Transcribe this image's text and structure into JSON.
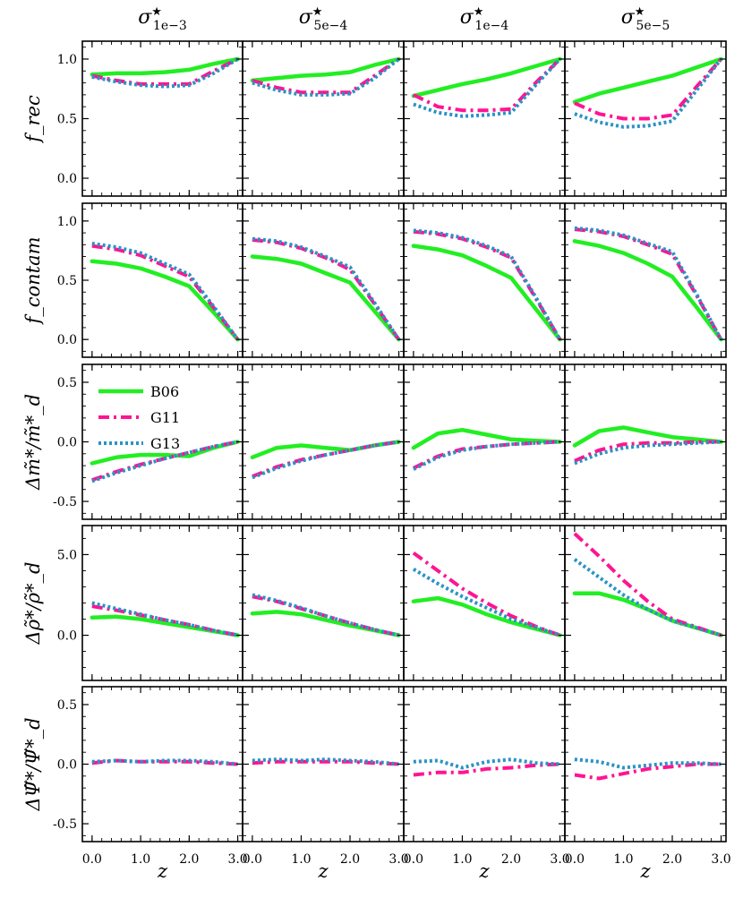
{
  "chart_data": {
    "type": "line",
    "layout": "grid 5 rows x 4 columns, shared x axis",
    "columns": [
      {
        "title": "σ*1e−3"
      },
      {
        "title": "σ*5e−4"
      },
      {
        "title": "σ*1e−4"
      },
      {
        "title": "σ*5e−5"
      }
    ],
    "x": [
      0.0,
      0.5,
      1.0,
      1.5,
      2.0,
      2.5,
      3.0
    ],
    "xlabel": "z",
    "xlim": [
      -0.2,
      3.1
    ],
    "xticks": [
      "0.0",
      "1.0",
      "2.0",
      "3.0"
    ],
    "legend": {
      "placement": "row 3, column 1, top-left",
      "entries": [
        "B06",
        "G11",
        "G13"
      ]
    },
    "series_styles": [
      {
        "name": "B06",
        "color": "#22ee22",
        "dash": "solid"
      },
      {
        "name": "G11",
        "color": "#ff1493",
        "dash": "dashdot"
      },
      {
        "name": "G13",
        "color": "#2a93c4",
        "dash": "dotted"
      }
    ],
    "rows": [
      {
        "ylabel": "f_rec",
        "ylim": [
          -0.15,
          1.15
        ],
        "yticks": [
          "0.0",
          "0.5",
          "1.0"
        ],
        "panels": [
          {
            "series": [
              {
                "name": "B06",
                "values": [
                  0.87,
                  0.88,
                  0.88,
                  0.89,
                  0.91,
                  0.96,
                  1.0
                ]
              },
              {
                "name": "G11",
                "values": [
                  0.86,
                  0.82,
                  0.79,
                  0.79,
                  0.79,
                  0.9,
                  1.0
                ]
              },
              {
                "name": "G13",
                "values": [
                  0.85,
                  0.81,
                  0.78,
                  0.77,
                  0.78,
                  0.88,
                  1.0
                ]
              }
            ]
          },
          {
            "series": [
              {
                "name": "B06",
                "values": [
                  0.82,
                  0.84,
                  0.86,
                  0.87,
                  0.89,
                  0.95,
                  1.0
                ]
              },
              {
                "name": "G11",
                "values": [
                  0.82,
                  0.76,
                  0.72,
                  0.72,
                  0.72,
                  0.86,
                  1.0
                ]
              },
              {
                "name": "G13",
                "values": [
                  0.8,
                  0.74,
                  0.7,
                  0.7,
                  0.71,
                  0.84,
                  1.0
                ]
              }
            ]
          },
          {
            "series": [
              {
                "name": "B06",
                "values": [
                  0.69,
                  0.74,
                  0.79,
                  0.83,
                  0.88,
                  0.94,
                  1.0
                ]
              },
              {
                "name": "G11",
                "values": [
                  0.7,
                  0.6,
                  0.57,
                  0.57,
                  0.58,
                  0.8,
                  1.0
                ]
              },
              {
                "name": "G13",
                "values": [
                  0.62,
                  0.55,
                  0.52,
                  0.53,
                  0.55,
                  0.78,
                  1.0
                ]
              }
            ]
          },
          {
            "series": [
              {
                "name": "B06",
                "values": [
                  0.64,
                  0.71,
                  0.76,
                  0.81,
                  0.86,
                  0.93,
                  1.0
                ]
              },
              {
                "name": "G11",
                "values": [
                  0.63,
                  0.54,
                  0.5,
                  0.5,
                  0.53,
                  0.77,
                  1.0
                ]
              },
              {
                "name": "G13",
                "values": [
                  0.54,
                  0.47,
                  0.43,
                  0.44,
                  0.48,
                  0.74,
                  1.0
                ]
              }
            ]
          }
        ]
      },
      {
        "ylabel": "f_contam",
        "ylim": [
          -0.15,
          1.15
        ],
        "yticks": [
          "0.0",
          "0.5",
          "1.0"
        ],
        "panels": [
          {
            "series": [
              {
                "name": "B06",
                "values": [
                  0.66,
                  0.64,
                  0.6,
                  0.53,
                  0.45,
                  0.23,
                  0.0
                ]
              },
              {
                "name": "G11",
                "values": [
                  0.79,
                  0.76,
                  0.71,
                  0.62,
                  0.53,
                  0.27,
                  0.0
                ]
              },
              {
                "name": "G13",
                "values": [
                  0.81,
                  0.78,
                  0.73,
                  0.64,
                  0.55,
                  0.28,
                  0.0
                ]
              }
            ]
          },
          {
            "series": [
              {
                "name": "B06",
                "values": [
                  0.7,
                  0.68,
                  0.64,
                  0.56,
                  0.48,
                  0.24,
                  0.0
                ]
              },
              {
                "name": "G11",
                "values": [
                  0.84,
                  0.82,
                  0.77,
                  0.69,
                  0.59,
                  0.3,
                  0.0
                ]
              },
              {
                "name": "G13",
                "values": [
                  0.85,
                  0.83,
                  0.78,
                  0.7,
                  0.61,
                  0.31,
                  0.0
                ]
              }
            ]
          },
          {
            "series": [
              {
                "name": "B06",
                "values": [
                  0.79,
                  0.76,
                  0.71,
                  0.62,
                  0.52,
                  0.26,
                  0.0
                ]
              },
              {
                "name": "G11",
                "values": [
                  0.91,
                  0.89,
                  0.85,
                  0.78,
                  0.69,
                  0.35,
                  0.0
                ]
              },
              {
                "name": "G13",
                "values": [
                  0.92,
                  0.9,
                  0.86,
                  0.79,
                  0.7,
                  0.36,
                  0.0
                ]
              }
            ]
          },
          {
            "series": [
              {
                "name": "B06",
                "values": [
                  0.83,
                  0.79,
                  0.73,
                  0.64,
                  0.53,
                  0.27,
                  0.0
                ]
              },
              {
                "name": "G11",
                "values": [
                  0.93,
                  0.91,
                  0.87,
                  0.8,
                  0.72,
                  0.37,
                  0.0
                ]
              },
              {
                "name": "G13",
                "values": [
                  0.94,
                  0.92,
                  0.88,
                  0.81,
                  0.74,
                  0.38,
                  0.0
                ]
              }
            ]
          }
        ]
      },
      {
        "ylabel": "Δm̃*/m̃*_d",
        "ylim": [
          -0.65,
          0.65
        ],
        "yticks": [
          "-0.5",
          "0.0",
          "0.5"
        ],
        "panels": [
          {
            "series": [
              {
                "name": "B06",
                "values": [
                  -0.18,
                  -0.13,
                  -0.11,
                  -0.11,
                  -0.12,
                  -0.05,
                  0.0
                ]
              },
              {
                "name": "G11",
                "values": [
                  -0.32,
                  -0.25,
                  -0.19,
                  -0.14,
                  -0.09,
                  -0.04,
                  0.0
                ]
              },
              {
                "name": "G13",
                "values": [
                  -0.33,
                  -0.26,
                  -0.2,
                  -0.14,
                  -0.09,
                  -0.04,
                  0.0
                ]
              }
            ]
          },
          {
            "series": [
              {
                "name": "B06",
                "values": [
                  -0.13,
                  -0.05,
                  -0.03,
                  -0.05,
                  -0.07,
                  -0.03,
                  0.0
                ]
              },
              {
                "name": "G11",
                "values": [
                  -0.29,
                  -0.21,
                  -0.15,
                  -0.11,
                  -0.07,
                  -0.03,
                  0.0
                ]
              },
              {
                "name": "G13",
                "values": [
                  -0.3,
                  -0.22,
                  -0.16,
                  -0.11,
                  -0.07,
                  -0.03,
                  0.0
                ]
              }
            ]
          },
          {
            "series": [
              {
                "name": "B06",
                "values": [
                  -0.05,
                  0.07,
                  0.1,
                  0.06,
                  0.02,
                  0.01,
                  0.0
                ]
              },
              {
                "name": "G11",
                "values": [
                  -0.22,
                  -0.12,
                  -0.06,
                  -0.04,
                  -0.02,
                  -0.01,
                  0.0
                ]
              },
              {
                "name": "G13",
                "values": [
                  -0.23,
                  -0.13,
                  -0.07,
                  -0.04,
                  -0.02,
                  -0.01,
                  0.0
                ]
              }
            ]
          },
          {
            "series": [
              {
                "name": "B06",
                "values": [
                  -0.03,
                  0.09,
                  0.12,
                  0.08,
                  0.04,
                  0.02,
                  0.0
                ]
              },
              {
                "name": "G11",
                "values": [
                  -0.16,
                  -0.07,
                  -0.02,
                  -0.01,
                  -0.01,
                  0.0,
                  0.0
                ]
              },
              {
                "name": "G13",
                "values": [
                  -0.18,
                  -0.1,
                  -0.05,
                  -0.03,
                  -0.02,
                  -0.01,
                  0.0
                ]
              }
            ]
          }
        ]
      },
      {
        "ylabel": "Δρ̃*/ρ̃*_d",
        "ylim": [
          -2.8,
          6.8
        ],
        "yticks": [
          "0.0",
          "5.0"
        ],
        "panels": [
          {
            "series": [
              {
                "name": "B06",
                "values": [
                  1.1,
                  1.15,
                  1.0,
                  0.75,
                  0.5,
                  0.25,
                  0.0
                ]
              },
              {
                "name": "G11",
                "values": [
                  1.8,
                  1.55,
                  1.25,
                  0.95,
                  0.65,
                  0.3,
                  0.0
                ]
              },
              {
                "name": "G13",
                "values": [
                  2.0,
                  1.65,
                  1.3,
                  0.95,
                  0.65,
                  0.3,
                  0.0
                ]
              }
            ]
          },
          {
            "series": [
              {
                "name": "B06",
                "values": [
                  1.35,
                  1.45,
                  1.3,
                  0.95,
                  0.6,
                  0.3,
                  0.0
                ]
              },
              {
                "name": "G11",
                "values": [
                  2.4,
                  2.1,
                  1.65,
                  1.2,
                  0.75,
                  0.35,
                  0.0
                ]
              },
              {
                "name": "G13",
                "values": [
                  2.5,
                  2.15,
                  1.7,
                  1.2,
                  0.75,
                  0.35,
                  0.0
                ]
              }
            ]
          },
          {
            "series": [
              {
                "name": "B06",
                "values": [
                  2.1,
                  2.3,
                  1.9,
                  1.3,
                  0.8,
                  0.4,
                  0.0
                ]
              },
              {
                "name": "G11",
                "values": [
                  5.1,
                  4.0,
                  2.9,
                  2.0,
                  1.2,
                  0.55,
                  0.0
                ]
              },
              {
                "name": "G13",
                "values": [
                  4.1,
                  3.2,
                  2.4,
                  1.7,
                  1.0,
                  0.5,
                  0.0
                ]
              }
            ]
          },
          {
            "series": [
              {
                "name": "B06",
                "values": [
                  2.6,
                  2.6,
                  2.2,
                  1.6,
                  0.9,
                  0.45,
                  0.0
                ]
              },
              {
                "name": "G11",
                "values": [
                  6.3,
                  4.9,
                  3.4,
                  2.1,
                  1.0,
                  0.5,
                  0.0
                ]
              },
              {
                "name": "G13",
                "values": [
                  4.7,
                  3.6,
                  2.5,
                  1.6,
                  0.9,
                  0.45,
                  0.0
                ]
              }
            ]
          }
        ]
      },
      {
        "ylabel": "ΔΨ̃*/Ψ̃*_d",
        "ylim": [
          -0.65,
          0.65
        ],
        "yticks": [
          "-0.5",
          "0.0",
          "0.5"
        ],
        "panels": [
          {
            "series": [
              {
                "name": "G11",
                "values": [
                  0.01,
                  0.03,
                  0.02,
                  0.02,
                  0.02,
                  0.01,
                  0.0
                ]
              },
              {
                "name": "G13",
                "values": [
                  0.02,
                  0.03,
                  0.02,
                  0.03,
                  0.03,
                  0.02,
                  0.0
                ]
              }
            ]
          },
          {
            "series": [
              {
                "name": "G11",
                "values": [
                  0.01,
                  0.02,
                  0.02,
                  0.02,
                  0.02,
                  0.01,
                  0.0
                ]
              },
              {
                "name": "G13",
                "values": [
                  0.03,
                  0.04,
                  0.03,
                  0.04,
                  0.03,
                  0.02,
                  0.0
                ]
              }
            ]
          },
          {
            "series": [
              {
                "name": "G11",
                "values": [
                  -0.09,
                  -0.07,
                  -0.07,
                  -0.04,
                  -0.03,
                  -0.01,
                  0.0
                ]
              },
              {
                "name": "G13",
                "values": [
                  0.02,
                  0.03,
                  -0.03,
                  0.02,
                  0.04,
                  0.01,
                  0.0
                ]
              }
            ]
          },
          {
            "series": [
              {
                "name": "G11",
                "values": [
                  -0.09,
                  -0.12,
                  -0.08,
                  -0.04,
                  -0.02,
                  0.0,
                  0.0
                ]
              },
              {
                "name": "G13",
                "values": [
                  0.04,
                  0.02,
                  -0.03,
                  -0.01,
                  0.01,
                  0.01,
                  0.0
                ]
              }
            ]
          }
        ]
      }
    ]
  }
}
